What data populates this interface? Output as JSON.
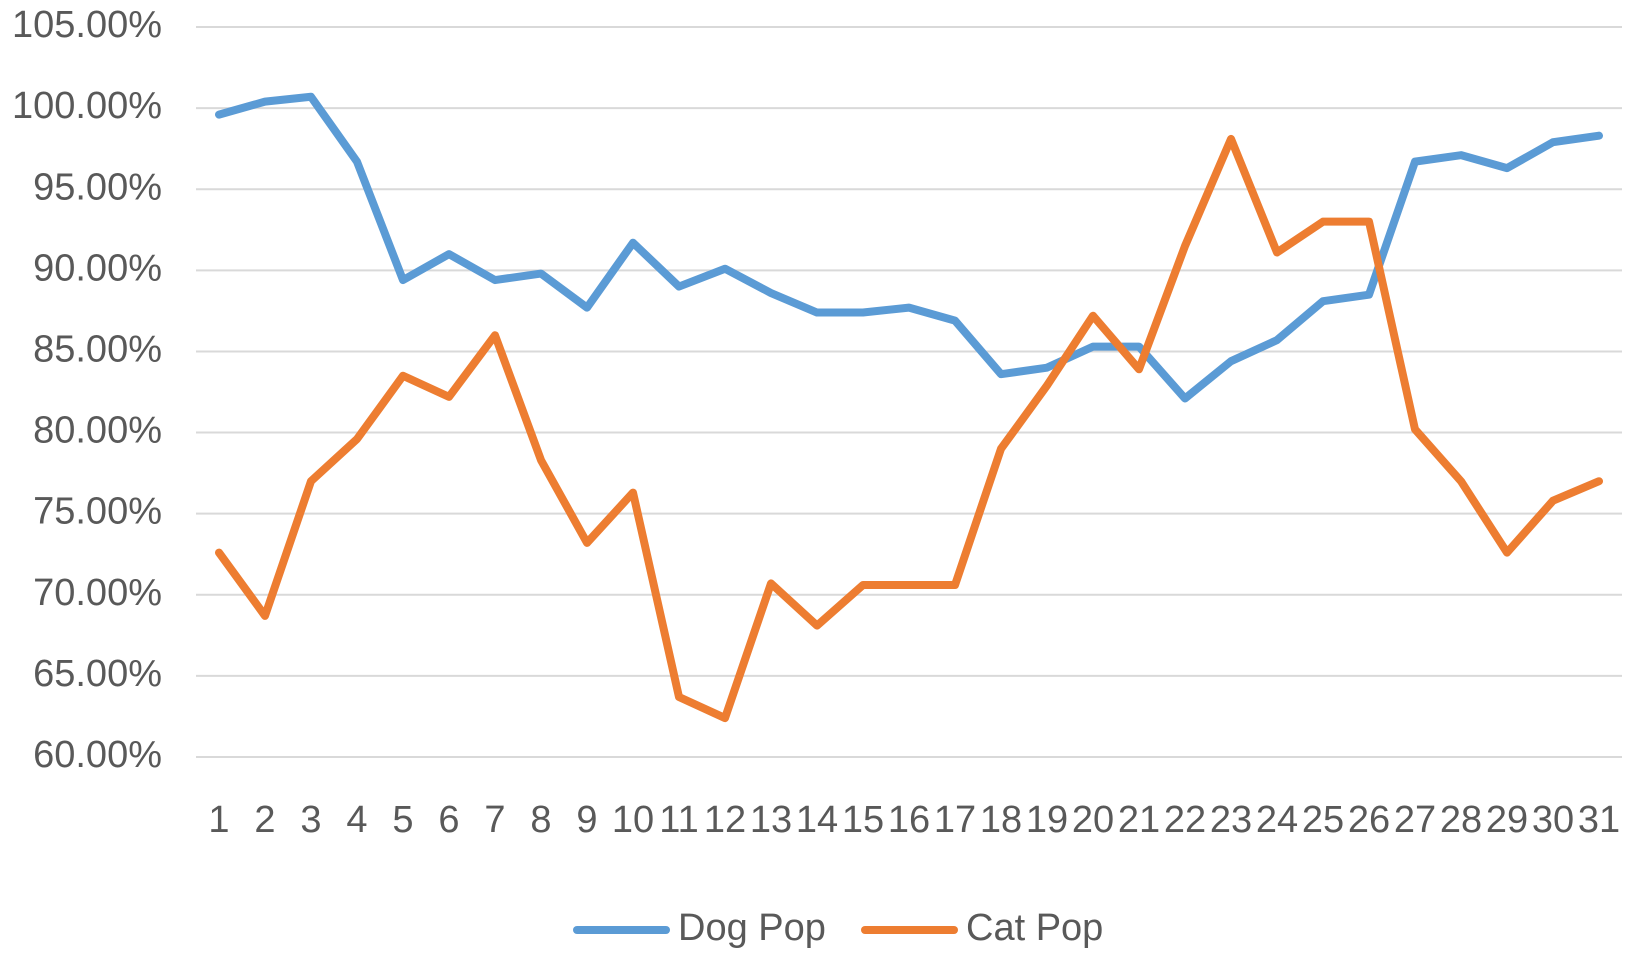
{
  "chart_data": {
    "type": "line",
    "categories": [
      "1",
      "2",
      "3",
      "4",
      "5",
      "6",
      "7",
      "8",
      "9",
      "10",
      "11",
      "12",
      "13",
      "14",
      "15",
      "16",
      "17",
      "18",
      "19",
      "20",
      "21",
      "22",
      "23",
      "24",
      "25",
      "26",
      "27",
      "28",
      "29",
      "30",
      "31"
    ],
    "series": [
      {
        "name": "Dog Pop",
        "color": "#5b9bd5",
        "values": [
          99.6,
          100.4,
          100.7,
          96.7,
          89.4,
          91.0,
          89.4,
          89.8,
          87.7,
          91.7,
          89.0,
          90.1,
          88.6,
          87.4,
          87.4,
          87.7,
          86.9,
          83.6,
          84.0,
          85.3,
          85.3,
          82.1,
          84.4,
          85.7,
          88.1,
          88.5,
          96.7,
          97.1,
          96.3,
          97.9,
          98.3
        ]
      },
      {
        "name": "Cat Pop",
        "color": "#ed7d31",
        "values": [
          72.6,
          68.7,
          77.0,
          79.6,
          83.5,
          82.2,
          86.0,
          78.3,
          73.2,
          76.3,
          63.7,
          62.4,
          70.7,
          68.1,
          70.6,
          70.6,
          70.6,
          79.0,
          82.9,
          87.2,
          83.9,
          91.5,
          98.1,
          91.1,
          93.0,
          93.0,
          80.2,
          77.0,
          72.6,
          75.8,
          77.0
        ]
      }
    ],
    "ylim": [
      60,
      105
    ],
    "yticks": [
      {
        "value": 60,
        "label": "60.00%"
      },
      {
        "value": 65,
        "label": "65.00%"
      },
      {
        "value": 70,
        "label": "70.00%"
      },
      {
        "value": 75,
        "label": "75.00%"
      },
      {
        "value": 80,
        "label": "80.00%"
      },
      {
        "value": 85,
        "label": "85.00%"
      },
      {
        "value": 90,
        "label": "90.00%"
      },
      {
        "value": 95,
        "label": "95.00%"
      },
      {
        "value": 100,
        "label": "100.00%"
      },
      {
        "value": 105,
        "label": "105.00%"
      }
    ],
    "grid": true,
    "legend": "bottom"
  }
}
